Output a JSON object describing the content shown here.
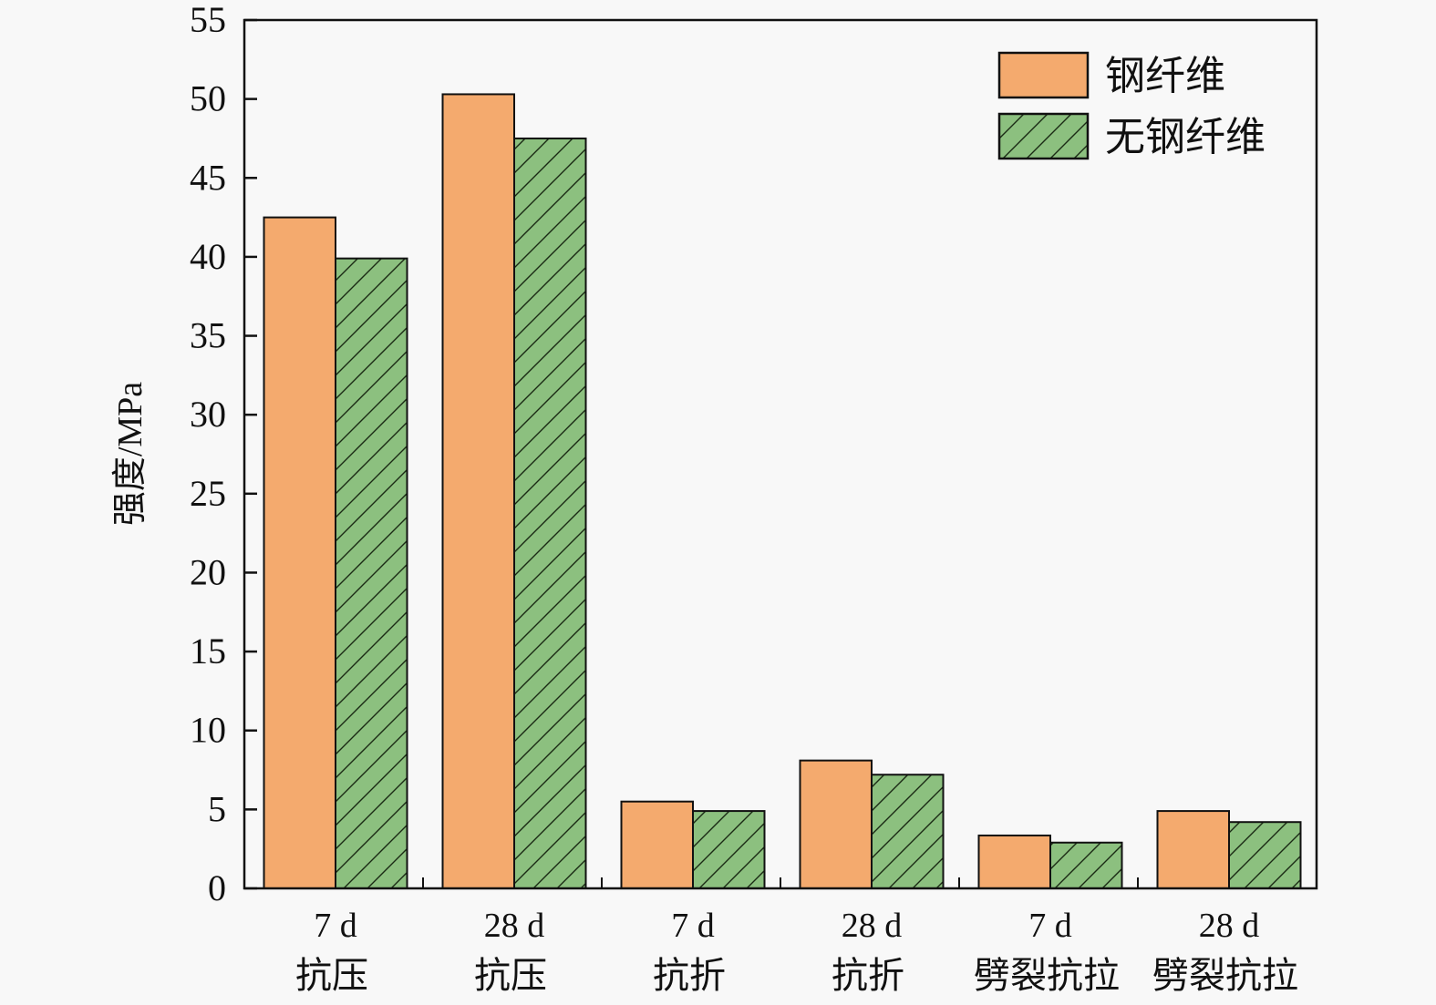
{
  "chart_data": {
    "type": "bar",
    "title": "",
    "ylabel": "强度/MPa",
    "xlabel": "",
    "ylim": [
      0,
      55
    ],
    "yticks": [
      0,
      5,
      10,
      15,
      20,
      25,
      30,
      35,
      40,
      45,
      50,
      55
    ],
    "categories": [
      [
        "7 d",
        "抗压"
      ],
      [
        "28 d",
        "抗压"
      ],
      [
        "7 d",
        "抗折"
      ],
      [
        "28 d",
        "抗折"
      ],
      [
        "7 d",
        "劈裂抗拉"
      ],
      [
        "28 d",
        "劈裂抗拉"
      ]
    ],
    "series": [
      {
        "name": "钢纤维",
        "color": "#F4AA6E",
        "pattern": "solid",
        "values": [
          42.5,
          50.3,
          5.5,
          8.1,
          3.35,
          4.9
        ]
      },
      {
        "name": "无钢纤维",
        "color": "#8CC07F",
        "pattern": "diagonal-hatch",
        "values": [
          39.9,
          47.5,
          4.9,
          7.2,
          2.9,
          4.2
        ]
      }
    ],
    "legend_position": "top-right",
    "grid": false
  }
}
